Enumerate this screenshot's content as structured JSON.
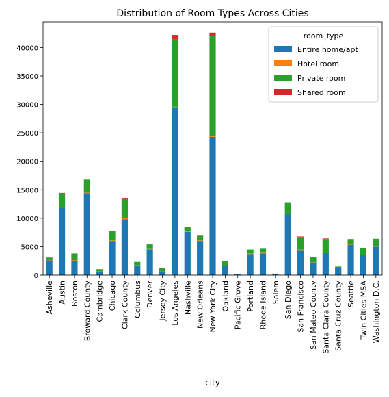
{
  "chart_data": {
    "type": "bar",
    "stacked": true,
    "title": "Distribution of Room Types Across Cities",
    "xlabel": "city",
    "ylabel": "",
    "ylim": [
      0,
      44500
    ],
    "yticks": [
      0,
      5000,
      10000,
      15000,
      20000,
      25000,
      30000,
      35000,
      40000
    ],
    "legend_title": "room_type",
    "legend_position": "top-right",
    "categories": [
      "Asheville",
      "Austin",
      "Boston",
      "Broward County",
      "Cambridge",
      "Chicago",
      "Clark County",
      "Columbus",
      "Denver",
      "Jersey City",
      "Los Angeles",
      "Nashville",
      "New Orleans",
      "New York City",
      "Oakland",
      "Pacific Grove",
      "Portland",
      "Rhode Island",
      "Salem",
      "San Diego",
      "San Francisco",
      "San Mateo County",
      "Santa Clara County",
      "Santa Cruz County",
      "Seattle",
      "Twin Cities MSA",
      "Washington D.C."
    ],
    "series": [
      {
        "name": "Entire home/apt",
        "color": "#1f77b4",
        "values": [
          2600,
          11900,
          2500,
          14400,
          600,
          6000,
          9800,
          1700,
          4500,
          700,
          29400,
          7600,
          6000,
          24300,
          1600,
          150,
          3700,
          3800,
          200,
          10700,
          4400,
          2200,
          3900,
          1300,
          5300,
          3500,
          5000
        ]
      },
      {
        "name": "Hotel room",
        "color": "#ff7f0e",
        "values": [
          50,
          50,
          100,
          100,
          50,
          100,
          300,
          20,
          100,
          20,
          200,
          100,
          100,
          200,
          20,
          5,
          100,
          250,
          10,
          100,
          100,
          30,
          50,
          20,
          50,
          30,
          100
        ]
      },
      {
        "name": "Private room",
        "color": "#2ca02c",
        "values": [
          450,
          2400,
          1200,
          2300,
          400,
          1500,
          3400,
          600,
          800,
          500,
          11900,
          800,
          800,
          17600,
          900,
          0,
          700,
          600,
          50,
          2000,
          2200,
          900,
          2400,
          200,
          1000,
          1200,
          1300
        ]
      },
      {
        "name": "Shared room",
        "color": "#d62728",
        "values": [
          0,
          100,
          0,
          0,
          0,
          100,
          100,
          0,
          0,
          0,
          700,
          0,
          50,
          500,
          0,
          0,
          0,
          0,
          0,
          0,
          100,
          50,
          100,
          0,
          0,
          0,
          0
        ]
      }
    ]
  }
}
